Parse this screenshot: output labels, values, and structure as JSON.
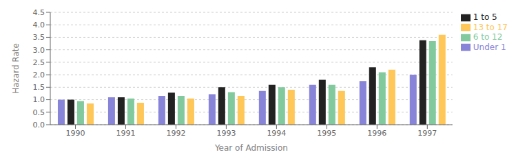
{
  "chart_data": {
    "type": "bar",
    "categories": [
      "1990",
      "1991",
      "1992",
      "1993",
      "1994",
      "1995",
      "1996",
      "1997"
    ],
    "series": [
      {
        "name": "Under 1",
        "color": "#8884d8",
        "values": [
          1.0,
          1.1,
          1.15,
          1.22,
          1.35,
          1.6,
          1.75,
          2.0
        ]
      },
      {
        "name": "1 to 5",
        "color": "#222222",
        "values": [
          1.0,
          1.1,
          1.28,
          1.5,
          1.6,
          1.8,
          2.3,
          3.38
        ]
      },
      {
        "name": "6 to 12",
        "color": "#82ca9d",
        "values": [
          0.95,
          1.05,
          1.15,
          1.3,
          1.5,
          1.6,
          2.1,
          3.35
        ]
      },
      {
        "name": "13 to 17",
        "color": "#ffc658",
        "values": [
          0.85,
          0.88,
          1.05,
          1.15,
          1.4,
          1.35,
          2.2,
          3.6
        ]
      }
    ],
    "xlabel": "Year of Admission",
    "ylabel": "Hazard Rate",
    "ylim": [
      0,
      4.5
    ],
    "yticks": [
      {
        "value": 0,
        "label": "0.0"
      },
      0.5,
      {
        "value": 1,
        "label": "1.0"
      },
      1.5,
      {
        "value": 2,
        "label": "2.0"
      },
      2.5,
      {
        "value": 3,
        "label": "3.0"
      },
      3.5,
      {
        "value": 4,
        "label": "4.0"
      },
      4.5
    ],
    "grid": true,
    "legend": "right"
  }
}
